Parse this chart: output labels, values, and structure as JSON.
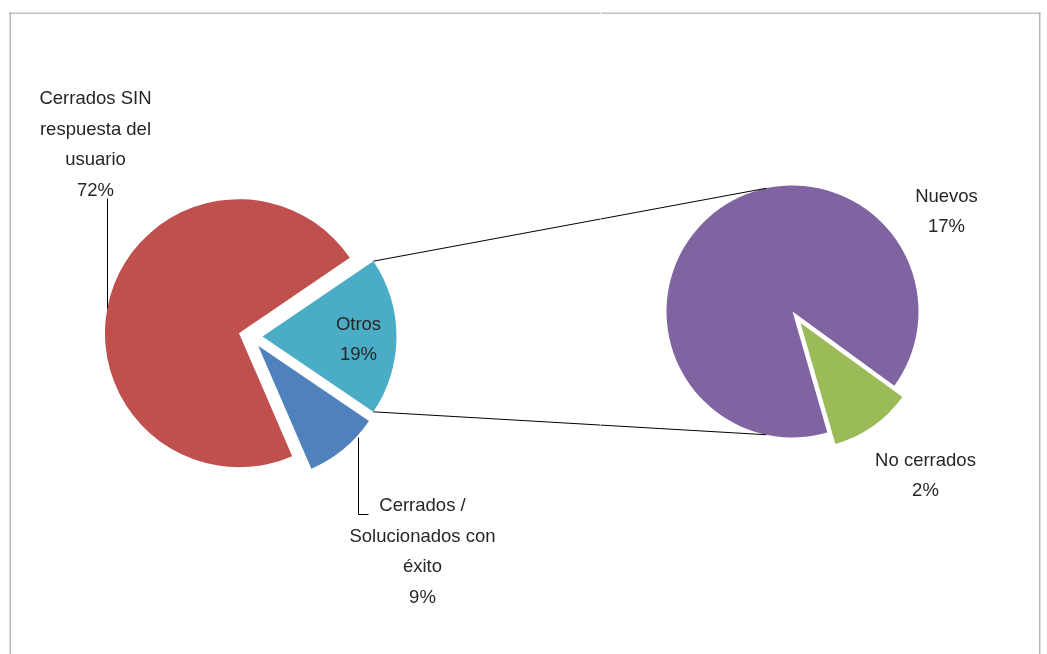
{
  "chart_data": [
    {
      "type": "pie",
      "categories": [
        "Cerrados SIN respuesta del usuario",
        "Cerrados / Solucionados con éxito",
        "Otros"
      ],
      "values": [
        72,
        9,
        19
      ],
      "colors": [
        "#c0504d",
        "#4f81bd",
        "#4bacc6"
      ],
      "value_labels": [
        "72%",
        "9%",
        "19%"
      ]
    },
    {
      "type": "pie",
      "categories": [
        "Nuevos",
        "No cerrados"
      ],
      "values": [
        17,
        2
      ],
      "colors": [
        "#8064a2",
        "#9bbb59"
      ],
      "value_labels": [
        "17%",
        "2%"
      ]
    }
  ]
}
